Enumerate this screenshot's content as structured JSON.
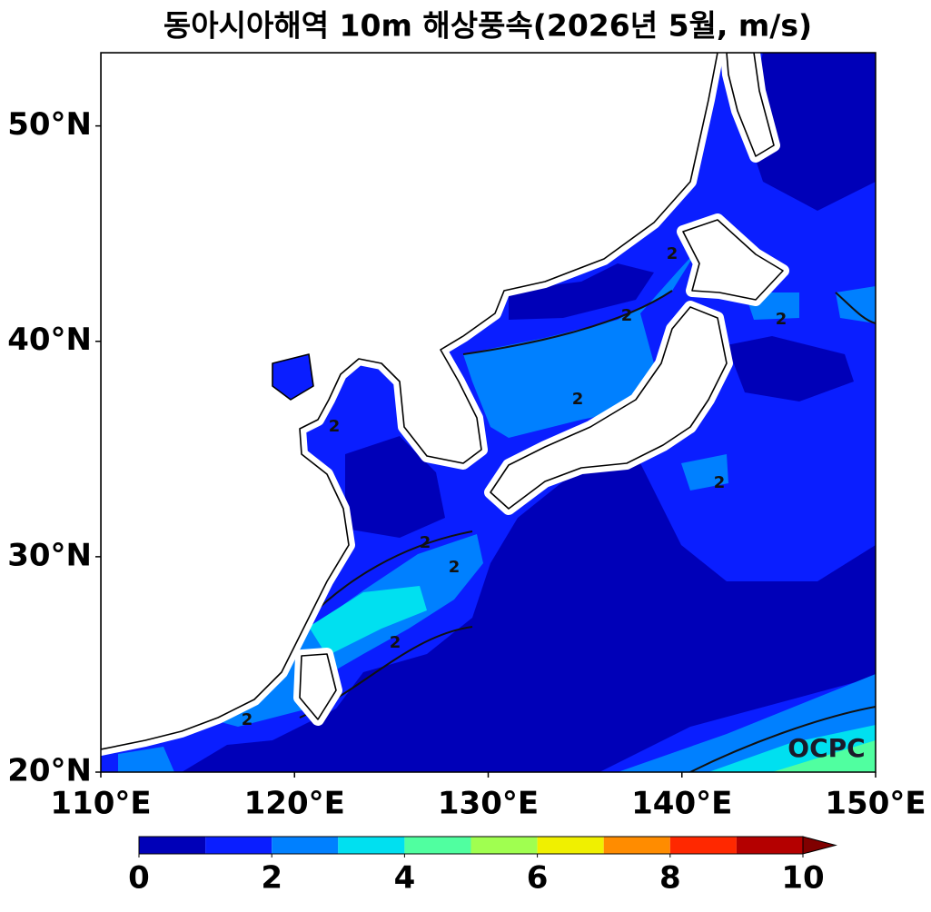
{
  "map": {
    "title": "동아시아해역 10m 해상풍속(2026년 5월, m/s)",
    "xlim": [
      110,
      150
    ],
    "ylim": [
      20,
      53.4
    ],
    "xticks": [
      {
        "value": 110,
        "label": "110°E"
      },
      {
        "value": 120,
        "label": "120°E"
      },
      {
        "value": 130,
        "label": "130°E"
      },
      {
        "value": 140,
        "label": "140°E"
      },
      {
        "value": 150,
        "label": "150°E"
      }
    ],
    "yticks": [
      {
        "value": 20,
        "label": "20°N"
      },
      {
        "value": 30,
        "label": "30°N"
      },
      {
        "value": 40,
        "label": "40°N"
      },
      {
        "value": 50,
        "label": "50°N"
      }
    ],
    "contour_label": "2",
    "watermark": "OCPC",
    "colorbar": {
      "levels": [
        0,
        1,
        2,
        3,
        4,
        5,
        6,
        7,
        8,
        9,
        10
      ],
      "colors": [
        "#0000b8",
        "#0a1eff",
        "#0080ff",
        "#00e0f0",
        "#50ffa0",
        "#a0ff50",
        "#f0f000",
        "#ff8c00",
        "#ff2800",
        "#b40000"
      ],
      "extend_color": "#800000",
      "ticks": [
        0,
        2,
        4,
        6,
        8,
        10
      ]
    }
  }
}
